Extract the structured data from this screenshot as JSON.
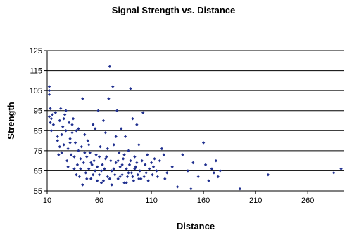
{
  "chart_data": {
    "type": "scatter",
    "title": "Signal Strength vs. Distance",
    "xlabel": "Distance",
    "ylabel": "Strength",
    "xlim": [
      10,
      295
    ],
    "ylim": [
      55,
      125
    ],
    "x_ticks": [
      10,
      60,
      110,
      160,
      210,
      260
    ],
    "y_ticks": [
      55,
      65,
      75,
      85,
      95,
      105,
      115,
      125
    ],
    "grid": "horizontal",
    "legend": "none",
    "marker_color": "#1f2f8f",
    "series": [
      {
        "points": [
          [
            12,
            107
          ],
          [
            12,
            105
          ],
          [
            12,
            103
          ],
          [
            13,
            96
          ],
          [
            12,
            92
          ],
          [
            14,
            91
          ],
          [
            13,
            89
          ],
          [
            15,
            93
          ],
          [
            14,
            85
          ],
          [
            16,
            88
          ],
          [
            18,
            94
          ],
          [
            20,
            80
          ],
          [
            21,
            73
          ],
          [
            22,
            90
          ],
          [
            23,
            96
          ],
          [
            24,
            83
          ],
          [
            25,
            87
          ],
          [
            26,
            78
          ],
          [
            27,
            93
          ],
          [
            28,
            95
          ],
          [
            29,
            70
          ],
          [
            30,
            76
          ],
          [
            31,
            89
          ],
          [
            32,
            81
          ],
          [
            33,
            73
          ],
          [
            34,
            88
          ],
          [
            35,
            91
          ],
          [
            36,
            66
          ],
          [
            37,
            79
          ],
          [
            38,
            85
          ],
          [
            39,
            68
          ],
          [
            40,
            75
          ],
          [
            41,
            62
          ],
          [
            42,
            71
          ],
          [
            43,
            77
          ],
          [
            44,
            101
          ],
          [
            45,
            69
          ],
          [
            46,
            83
          ],
          [
            47,
            64
          ],
          [
            48,
            72
          ],
          [
            49,
            80
          ],
          [
            50,
            66
          ],
          [
            51,
            74
          ],
          [
            52,
            61
          ],
          [
            53,
            68
          ],
          [
            54,
            88
          ],
          [
            55,
            70
          ],
          [
            56,
            65
          ],
          [
            57,
            73
          ],
          [
            58,
            60
          ],
          [
            59,
            95
          ],
          [
            60,
            63
          ],
          [
            61,
            77
          ],
          [
            62,
            59
          ],
          [
            63,
            68
          ],
          [
            64,
            90
          ],
          [
            65,
            66
          ],
          [
            66,
            84
          ],
          [
            67,
            72
          ],
          [
            68,
            62
          ],
          [
            69,
            101
          ],
          [
            70,
            117
          ],
          [
            71,
            70
          ],
          [
            72,
            65
          ],
          [
            73,
            107
          ],
          [
            74,
            78
          ],
          [
            75,
            63
          ],
          [
            76,
            69
          ],
          [
            77,
            95
          ],
          [
            78,
            61
          ],
          [
            79,
            74
          ],
          [
            80,
            67
          ],
          [
            81,
            86
          ],
          [
            82,
            63
          ],
          [
            83,
            71
          ],
          [
            84,
            59
          ],
          [
            85,
            82
          ],
          [
            86,
            66
          ],
          [
            87,
            62
          ],
          [
            88,
            75
          ],
          [
            89,
            68
          ],
          [
            90,
            106
          ],
          [
            91,
            64
          ],
          [
            92,
            91
          ],
          [
            93,
            60
          ],
          [
            94,
            72
          ],
          [
            95,
            67
          ],
          [
            96,
            88
          ],
          [
            97,
            63
          ],
          [
            98,
            78
          ],
          [
            99,
            65
          ],
          [
            100,
            61
          ],
          [
            101,
            70
          ],
          [
            102,
            94
          ],
          [
            103,
            62
          ],
          [
            104,
            68
          ],
          [
            105,
            64
          ],
          [
            106,
            73
          ],
          [
            107,
            60
          ],
          [
            108,
            66
          ],
          [
            110,
            69
          ],
          [
            111,
            63
          ],
          [
            112,
            67
          ],
          [
            113,
            71
          ],
          [
            115,
            65
          ],
          [
            116,
            62
          ],
          [
            118,
            70
          ],
          [
            120,
            76
          ],
          [
            122,
            73
          ],
          [
            123,
            61
          ],
          [
            125,
            64
          ],
          [
            130,
            67
          ],
          [
            135,
            57
          ],
          [
            140,
            73
          ],
          [
            145,
            65
          ],
          [
            148,
            56
          ],
          [
            150,
            69
          ],
          [
            155,
            62
          ],
          [
            160,
            79
          ],
          [
            162,
            68
          ],
          [
            165,
            60
          ],
          [
            168,
            66
          ],
          [
            170,
            64
          ],
          [
            172,
            70
          ],
          [
            174,
            62
          ],
          [
            176,
            65
          ],
          [
            195,
            56
          ],
          [
            222,
            63
          ],
          [
            285,
            64
          ],
          [
            292,
            66
          ],
          [
            20,
            82
          ],
          [
            22,
            77
          ],
          [
            24,
            74
          ],
          [
            26,
            91
          ],
          [
            28,
            85
          ],
          [
            30,
            67
          ],
          [
            32,
            79
          ],
          [
            34,
            84
          ],
          [
            36,
            72
          ],
          [
            38,
            63
          ],
          [
            40,
            86
          ],
          [
            42,
            66
          ],
          [
            44,
            58
          ],
          [
            46,
            74
          ],
          [
            48,
            61
          ],
          [
            50,
            78
          ],
          [
            52,
            69
          ],
          [
            54,
            63
          ],
          [
            56,
            86
          ],
          [
            58,
            67
          ],
          [
            60,
            72
          ],
          [
            62,
            65
          ],
          [
            64,
            60
          ],
          [
            66,
            71
          ],
          [
            68,
            76
          ],
          [
            70,
            61
          ],
          [
            72,
            58
          ],
          [
            74,
            66
          ],
          [
            76,
            82
          ],
          [
            78,
            70
          ],
          [
            80,
            62
          ],
          [
            82,
            68
          ],
          [
            84,
            73
          ],
          [
            86,
            59
          ],
          [
            88,
            64
          ],
          [
            90,
            70
          ],
          [
            92,
            62
          ],
          [
            94,
            66
          ],
          [
            96,
            69
          ],
          [
            98,
            61
          ]
        ]
      }
    ]
  }
}
